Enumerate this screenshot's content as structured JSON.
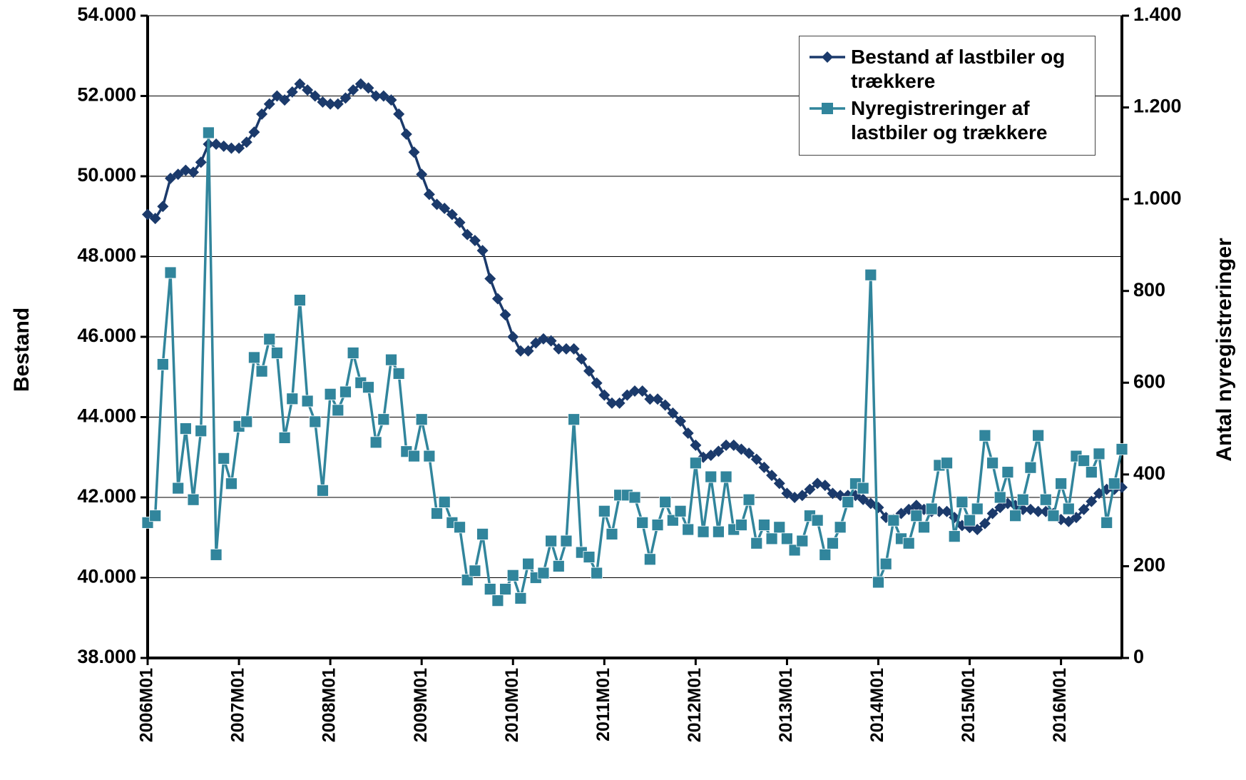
{
  "chart_data": {
    "type": "line",
    "y_label": "Bestand",
    "y2_label": "Antal nyregistreringer",
    "categories": [
      "2006M01",
      null,
      null,
      null,
      null,
      null,
      null,
      null,
      null,
      null,
      null,
      null,
      "2007M01",
      null,
      null,
      null,
      null,
      null,
      null,
      null,
      null,
      null,
      null,
      null,
      "2008M01",
      null,
      null,
      null,
      null,
      null,
      null,
      null,
      null,
      null,
      null,
      null,
      "2009M01",
      null,
      null,
      null,
      null,
      null,
      null,
      null,
      null,
      null,
      null,
      null,
      "2010M01",
      null,
      null,
      null,
      null,
      null,
      null,
      null,
      null,
      null,
      null,
      null,
      "2011M01",
      null,
      null,
      null,
      null,
      null,
      null,
      null,
      null,
      null,
      null,
      null,
      "2012M01",
      null,
      null,
      null,
      null,
      null,
      null,
      null,
      null,
      null,
      null,
      null,
      "2013M01",
      null,
      null,
      null,
      null,
      null,
      null,
      null,
      null,
      null,
      null,
      null,
      "2014M01",
      null,
      null,
      null,
      null,
      null,
      null,
      null,
      null,
      null,
      null,
      null,
      "2015M01",
      null,
      null,
      null,
      null,
      null,
      null,
      null,
      null,
      null,
      null,
      null,
      "2016M01",
      null,
      null,
      null,
      null,
      null,
      null,
      null,
      null
    ],
    "ylim": [
      38000,
      54000
    ],
    "yticks": [
      {
        "value": 38000,
        "label": "38.000"
      },
      {
        "value": 40000,
        "label": "40.000"
      },
      {
        "value": 42000,
        "label": "42.000"
      },
      {
        "value": 44000,
        "label": "44.000"
      },
      {
        "value": 46000,
        "label": "46.000"
      },
      {
        "value": 48000,
        "label": "48.000"
      },
      {
        "value": 50000,
        "label": "50.000"
      },
      {
        "value": 52000,
        "label": "52.000"
      },
      {
        "value": 54000,
        "label": "54.000"
      }
    ],
    "y2lim": [
      0,
      1400
    ],
    "y2ticks": [
      0,
      200,
      400,
      600,
      800,
      {
        "value": 1000,
        "label": "1.000"
      },
      {
        "value": 1200,
        "label": "1.200"
      },
      {
        "value": 1400,
        "label": "1.400"
      }
    ],
    "grid": true,
    "legend": "upper right",
    "series": [
      {
        "name": "Bestand af lastbiler og trækkere",
        "color": "#1b3a6b",
        "marker": "diamond",
        "values": [
          49050,
          48950,
          49250,
          49950,
          50050,
          50150,
          50100,
          50350,
          50800,
          50800,
          50750,
          50700,
          50700,
          50850,
          51100,
          51550,
          51800,
          52000,
          51900,
          52100,
          52300,
          52150,
          52000,
          51850,
          51800,
          51800,
          51950,
          52150,
          52300,
          52200,
          52000,
          52000,
          51900,
          51550,
          51050,
          50600,
          50050,
          49550,
          49300,
          49200,
          49050,
          48850,
          48550,
          48400,
          48150,
          47450,
          46950,
          46550,
          46000,
          45650,
          45650,
          45850,
          45950,
          45900,
          45700,
          45700,
          45700,
          45450,
          45150,
          44850,
          44550,
          44350,
          44350,
          44550,
          44650,
          44650,
          44450,
          44450,
          44300,
          44100,
          43900,
          43600,
          43300,
          43000,
          43050,
          43150,
          43300,
          43300,
          43200,
          43100,
          42950,
          42750,
          42550,
          42350,
          42100,
          42000,
          42050,
          42200,
          42350,
          42300,
          42100,
          42050,
          42050,
          42050,
          41950,
          41850,
          41750,
          41500,
          41450,
          41600,
          41700,
          41800,
          41700,
          41650,
          41650,
          41650,
          41500,
          41300,
          41250,
          41200,
          41350,
          41600,
          41750,
          41850,
          41800,
          41700,
          41700,
          41650,
          41650,
          41600,
          41450,
          41400,
          41500,
          41700,
          41900,
          42100,
          42200,
          42200,
          42250
        ]
      },
      {
        "name": "Nyregistreringer af lastbiler og trækkere",
        "color": "#31859c",
        "marker": "square",
        "axis": "y2",
        "values": [
          295,
          310,
          640,
          840,
          370,
          500,
          345,
          495,
          1145,
          225,
          435,
          380,
          505,
          515,
          655,
          625,
          695,
          665,
          480,
          565,
          780,
          560,
          515,
          365,
          575,
          540,
          580,
          665,
          600,
          590,
          470,
          520,
          650,
          620,
          450,
          440,
          520,
          440,
          315,
          340,
          295,
          285,
          170,
          190,
          270,
          150,
          125,
          150,
          180,
          130,
          205,
          175,
          185,
          255,
          200,
          255,
          520,
          230,
          220,
          185,
          320,
          270,
          355,
          355,
          350,
          295,
          215,
          290,
          340,
          300,
          320,
          280,
          425,
          275,
          395,
          275,
          395,
          280,
          290,
          345,
          250,
          290,
          260,
          285,
          260,
          235,
          255,
          310,
          300,
          225,
          250,
          285,
          340,
          380,
          370,
          835,
          165,
          205,
          300,
          260,
          250,
          310,
          285,
          325,
          420,
          425,
          265,
          340,
          300,
          325,
          485,
          425,
          350,
          405,
          310,
          345,
          415,
          485,
          345,
          310,
          380,
          325,
          440,
          430,
          405,
          445,
          295,
          380,
          455
        ]
      }
    ]
  }
}
